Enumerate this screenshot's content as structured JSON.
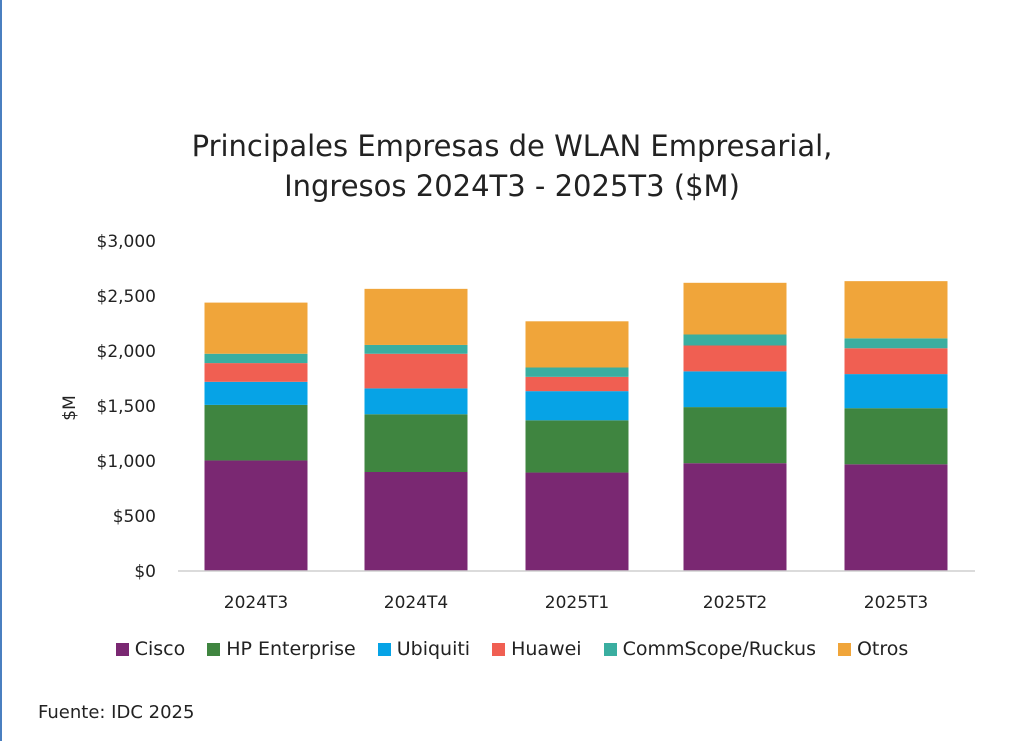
{
  "chart_data": {
    "type": "bar",
    "stacked": true,
    "title_lines": [
      "Principales Empresas de WLAN Empresarial,",
      "Ingresos 2024T3 - 2025T3 ($M)"
    ],
    "ylabel": "$M",
    "xlabel": "",
    "ylim": [
      0,
      3000
    ],
    "yticks": [
      0,
      500,
      1000,
      1500,
      2000,
      2500,
      3000
    ],
    "ytick_labels": [
      "$0",
      "$500",
      "$1,000",
      "$1,500",
      "$2,000",
      "$2,500",
      "$3,000"
    ],
    "categories": [
      "2024T3",
      "2024T4",
      "2025T1",
      "2025T2",
      "2025T3"
    ],
    "grid": false,
    "legend_position": "bottom",
    "series": [
      {
        "name": "Cisco",
        "color": "#7a2872",
        "values": [
          1005,
          900,
          895,
          980,
          970
        ]
      },
      {
        "name": "HP Enterprise",
        "color": "#3f8540",
        "values": [
          505,
          525,
          475,
          510,
          510
        ]
      },
      {
        "name": "Ubiquiti",
        "color": "#06a3e6",
        "values": [
          210,
          235,
          265,
          325,
          310
        ]
      },
      {
        "name": "Huawei",
        "color": "#f05f52",
        "values": [
          170,
          315,
          130,
          235,
          235
        ]
      },
      {
        "name": "CommScope/Ruckus",
        "color": "#3aaea0",
        "values": [
          85,
          80,
          85,
          100,
          90
        ]
      },
      {
        "name": "Otros",
        "color": "#f0a53a",
        "values": [
          465,
          510,
          420,
          470,
          520
        ]
      }
    ],
    "source": "Fuente: IDC 2025"
  }
}
